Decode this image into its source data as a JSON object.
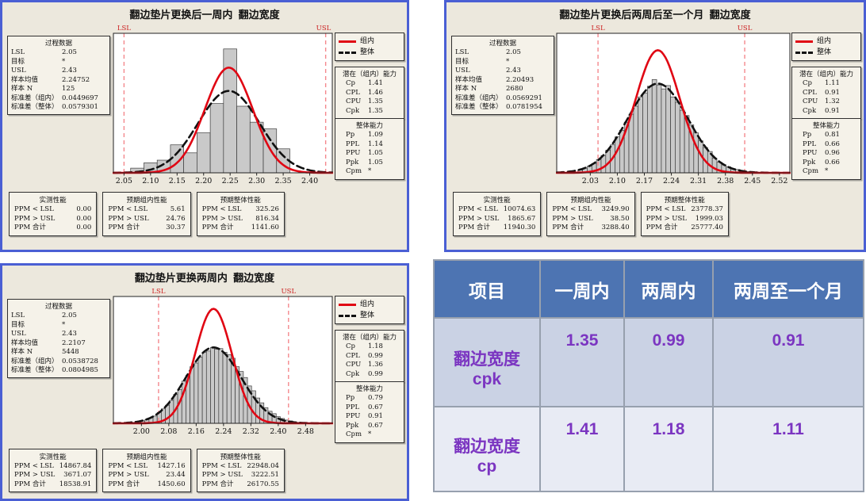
{
  "colors": {
    "panel_border": "#4A5FD4",
    "panel_bg": "#ECE8DD",
    "within_curve": "#E00613",
    "overall_curve": "#111111",
    "spec_line": "#F4888D",
    "spec_label": "#CC2222",
    "bar_fill": "#C9C9C9",
    "table_header_bg": "#4D74B2",
    "table_row1_bg": "#CAD2E4",
    "table_row2_bg": "#E8EBF4",
    "table_value_text": "#7B35C1"
  },
  "chart_data": [
    {
      "type": "bar",
      "subtype": "process-capability-histogram",
      "title": "翻边垫片更换后一周内  翻边宽度",
      "legend": [
        {
          "label": "组内"
        },
        {
          "label": "整体"
        }
      ],
      "process": {
        "title": "过程数据",
        "rows": [
          {
            "label": "LSL",
            "value": "2.05"
          },
          {
            "label": "目标",
            "value": "*"
          },
          {
            "label": "USL",
            "value": "2.43"
          },
          {
            "label": "样本均值",
            "value": "2.24752"
          },
          {
            "label": "样本 N",
            "value": "125"
          },
          {
            "label": "标准差（组内）",
            "value": "0.0449697"
          },
          {
            "label": "标准差（整体）",
            "value": "0.0579301"
          }
        ]
      },
      "within_capability": {
        "title": "潜在（组内）能力",
        "rows": [
          {
            "label": "Cp",
            "value": "1.41"
          },
          {
            "label": "CPL",
            "value": "1.46"
          },
          {
            "label": "CPU",
            "value": "1.35"
          },
          {
            "label": "Cpk",
            "value": "1.35"
          }
        ]
      },
      "overall_capability": {
        "title": "整体能力",
        "rows": [
          {
            "label": "Pp",
            "value": "1.09"
          },
          {
            "label": "PPL",
            "value": "1.14"
          },
          {
            "label": "PPU",
            "value": "1.05"
          },
          {
            "label": "Ppk",
            "value": "1.05"
          },
          {
            "label": "Cpm",
            "value": "*"
          }
        ]
      },
      "performance": [
        {
          "title": "实测性能",
          "rows": [
            {
              "label": "PPM < LSL",
              "value": "0.00"
            },
            {
              "label": "PPM > USL",
              "value": "0.00"
            },
            {
              "label": "PPM 合计",
              "value": "0.00"
            }
          ]
        },
        {
          "title": "预期组内性能",
          "rows": [
            {
              "label": "PPM < LSL",
              "value": "5.61"
            },
            {
              "label": "PPM > USL",
              "value": "24.76"
            },
            {
              "label": "PPM 合计",
              "value": "30.37"
            }
          ]
        },
        {
          "title": "预期整体性能",
          "rows": [
            {
              "label": "PPM < LSL",
              "value": "325.26"
            },
            {
              "label": "PPM > USL",
              "value": "816.34"
            },
            {
              "label": "PPM 合计",
              "value": "1141.60"
            }
          ]
        }
      ],
      "spec": {
        "lsl": 2.05,
        "usl": 2.43,
        "lsl_label": "LSL",
        "usl_label": "USL"
      },
      "axis": {
        "xmin": 2.03,
        "xmax": 2.4425,
        "tick_values": [
          2.05,
          2.1,
          2.15,
          2.2,
          2.25,
          2.3,
          2.35,
          2.4
        ],
        "tick_labels": [
          "2.05",
          "2.10",
          "2.15",
          "2.20",
          "2.25",
          "2.30",
          "2.35",
          "2.40"
        ]
      },
      "bars": {
        "start": 2.0625,
        "bin_width": 0.025,
        "heights": [
          0.035,
          0.075,
          0.095,
          0.21,
          0.15,
          0.3,
          0.52,
          0.93,
          0.5,
          0.38,
          0.33,
          0.18
        ]
      },
      "curves": {
        "within": {
          "mean": 2.24752,
          "sigma": 0.045,
          "peak": 0.79
        },
        "overall": {
          "mean": 2.24752,
          "sigma": 0.0579,
          "peak": 0.615
        }
      }
    },
    {
      "type": "bar",
      "subtype": "process-capability-histogram",
      "title": "翻边垫片更换后两周后至一个月  翻边宽度",
      "legend": [
        {
          "label": "组内"
        },
        {
          "label": "整体"
        }
      ],
      "process": {
        "title": "过程数据",
        "rows": [
          {
            "label": "LSL",
            "value": "2.05"
          },
          {
            "label": "目标",
            "value": "*"
          },
          {
            "label": "USL",
            "value": "2.43"
          },
          {
            "label": "样本均值",
            "value": "2.20493"
          },
          {
            "label": "样本 N",
            "value": "2680"
          },
          {
            "label": "标准差（组内）",
            "value": "0.0569291"
          },
          {
            "label": "标准差（整体）",
            "value": "0.0781954"
          }
        ]
      },
      "within_capability": {
        "title": "潜在（组内）能力",
        "rows": [
          {
            "label": "Cp",
            "value": "1.11"
          },
          {
            "label": "CPL",
            "value": "0.91"
          },
          {
            "label": "CPU",
            "value": "1.32"
          },
          {
            "label": "Cpk",
            "value": "0.91"
          }
        ]
      },
      "overall_capability": {
        "title": "整体能力",
        "rows": [
          {
            "label": "Pp",
            "value": "0.81"
          },
          {
            "label": "PPL",
            "value": "0.66"
          },
          {
            "label": "PPU",
            "value": "0.96"
          },
          {
            "label": "Ppk",
            "value": "0.66"
          },
          {
            "label": "Cpm",
            "value": "*"
          }
        ]
      },
      "performance": [
        {
          "title": "实测性能",
          "rows": [
            {
              "label": "PPM < LSL",
              "value": "10074.63"
            },
            {
              "label": "PPM > USL",
              "value": "1865.67"
            },
            {
              "label": "PPM 合计",
              "value": "11940.30"
            }
          ]
        },
        {
          "title": "预期组内性能",
          "rows": [
            {
              "label": "PPM < LSL",
              "value": "3249.90"
            },
            {
              "label": "PPM > USL",
              "value": "38.50"
            },
            {
              "label": "PPM 合计",
              "value": "3288.40"
            }
          ]
        },
        {
          "title": "预期整体性能",
          "rows": [
            {
              "label": "PPM < LSL",
              "value": "23778.37"
            },
            {
              "label": "PPM > USL",
              "value": "1999.03"
            },
            {
              "label": "PPM 合计",
              "value": "25777.40"
            }
          ]
        }
      ],
      "spec": {
        "lsl": 2.05,
        "usl": 2.43,
        "lsl_label": "LSL",
        "usl_label": "USL"
      },
      "axis": {
        "xmin": 1.943,
        "xmax": 2.547,
        "tick_values": [
          2.03,
          2.1,
          2.17,
          2.24,
          2.31,
          2.38,
          2.45,
          2.52
        ],
        "tick_labels": [
          "2.03",
          "2.10",
          "2.17",
          "2.24",
          "2.31",
          "2.38",
          "2.45",
          "2.52"
        ]
      },
      "bars": {
        "start": 1.998,
        "bin_width": 0.012,
        "heights": [
          0.02,
          0.035,
          0.05,
          0.07,
          0.1,
          0.13,
          0.17,
          0.21,
          0.27,
          0.32,
          0.38,
          0.44,
          0.5,
          0.57,
          0.6,
          0.65,
          0.7,
          0.66,
          0.63,
          0.655,
          0.57,
          0.53,
          0.47,
          0.43,
          0.36,
          0.3,
          0.24,
          0.19,
          0.16,
          0.11,
          0.08,
          0.06,
          0.045,
          0.03,
          0.025,
          0.015,
          0.01,
          0.008,
          0.005,
          0.004
        ]
      },
      "curves": {
        "within": {
          "mean": 2.20493,
          "sigma": 0.0569,
          "peak": 0.92
        },
        "overall": {
          "mean": 2.20493,
          "sigma": 0.0782,
          "peak": 0.67
        }
      }
    },
    {
      "type": "bar",
      "subtype": "process-capability-histogram",
      "title": "翻边垫片更换两周内  翻边宽度",
      "legend": [
        {
          "label": "组内"
        },
        {
          "label": "整体"
        }
      ],
      "process": {
        "title": "过程数据",
        "rows": [
          {
            "label": "LSL",
            "value": "2.05"
          },
          {
            "label": "目标",
            "value": "*"
          },
          {
            "label": "USL",
            "value": "2.43"
          },
          {
            "label": "样本均值",
            "value": "2.2107"
          },
          {
            "label": "样本 N",
            "value": "5448"
          },
          {
            "label": "标准差（组内）",
            "value": "0.0538728"
          },
          {
            "label": "标准差（整体）",
            "value": "0.0804985"
          }
        ]
      },
      "within_capability": {
        "title": "潜在（组内）能力",
        "rows": [
          {
            "label": "Cp",
            "value": "1.18"
          },
          {
            "label": "CPL",
            "value": "0.99"
          },
          {
            "label": "CPU",
            "value": "1.36"
          },
          {
            "label": "Cpk",
            "value": "0.99"
          }
        ]
      },
      "overall_capability": {
        "title": "整体能力",
        "rows": [
          {
            "label": "Pp",
            "value": "0.79"
          },
          {
            "label": "PPL",
            "value": "0.67"
          },
          {
            "label": "PPU",
            "value": "0.91"
          },
          {
            "label": "Ppk",
            "value": "0.67"
          },
          {
            "label": "Cpm",
            "value": "*"
          }
        ]
      },
      "performance": [
        {
          "title": "实测性能",
          "rows": [
            {
              "label": "PPM < LSL",
              "value": "14867.84"
            },
            {
              "label": "PPM > USL",
              "value": "3671.07"
            },
            {
              "label": "PPM 合计",
              "value": "18538.91"
            }
          ]
        },
        {
          "title": "预期组内性能",
          "rows": [
            {
              "label": "PPM < LSL",
              "value": "1427.16"
            },
            {
              "label": "PPM > USL",
              "value": "23.44"
            },
            {
              "label": "PPM 合计",
              "value": "1450.60"
            }
          ]
        },
        {
          "title": "预期整体性能",
          "rows": [
            {
              "label": "PPM < LSL",
              "value": "22948.04"
            },
            {
              "label": "PPM > USL",
              "value": "3222.51"
            },
            {
              "label": "PPM 合计",
              "value": "26170.55"
            }
          ]
        }
      ],
      "spec": {
        "lsl": 2.05,
        "usl": 2.43,
        "lsl_label": "LSL",
        "usl_label": "USL"
      },
      "axis": {
        "xmin": 1.918,
        "xmax": 2.558,
        "tick_values": [
          2.0,
          2.08,
          2.16,
          2.24,
          2.32,
          2.4,
          2.48
        ],
        "tick_labels": [
          "2.00",
          "2.08",
          "2.16",
          "2.24",
          "2.32",
          "2.40",
          "2.48"
        ]
      },
      "bars": {
        "start": 1.974,
        "bin_width": 0.012,
        "heights": [
          0.008,
          0.012,
          0.02,
          0.03,
          0.045,
          0.06,
          0.09,
          0.12,
          0.15,
          0.19,
          0.24,
          0.28,
          0.35,
          0.4,
          0.47,
          0.5,
          0.55,
          0.59,
          0.6,
          0.63,
          0.615,
          0.62,
          0.59,
          0.57,
          0.54,
          0.47,
          0.43,
          0.38,
          0.31,
          0.27,
          0.21,
          0.17,
          0.13,
          0.1,
          0.08,
          0.055,
          0.04,
          0.027,
          0.02,
          0.012,
          0.008,
          0.005,
          0.004,
          0.003
        ]
      },
      "curves": {
        "within": {
          "mean": 2.2107,
          "sigma": 0.0539,
          "peak": 0.95
        },
        "overall": {
          "mean": 2.2107,
          "sigma": 0.0805,
          "peak": 0.63
        }
      }
    }
  ],
  "table": {
    "headers": [
      "项目",
      "一周内",
      "两周内",
      "两周至一个月"
    ],
    "rows": [
      {
        "label_line1": "翻边宽度",
        "label_line2": "cpk",
        "values": [
          "1.35",
          "0.99",
          "0.91"
        ]
      },
      {
        "label_line1": "翻边宽度",
        "label_line2": "cp",
        "values": [
          "1.41",
          "1.18",
          "1.11"
        ]
      }
    ]
  }
}
